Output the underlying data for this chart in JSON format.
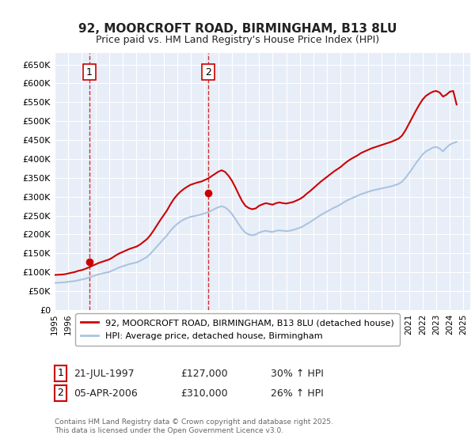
{
  "title_line1": "92, MOORCROFT ROAD, BIRMINGHAM, B13 8LU",
  "title_line2": "Price paid vs. HM Land Registry's House Price Index (HPI)",
  "ylabel_ticks": [
    "£0",
    "£50K",
    "£100K",
    "£150K",
    "£200K",
    "£250K",
    "£300K",
    "£350K",
    "£400K",
    "£450K",
    "£500K",
    "£550K",
    "£600K",
    "£650K"
  ],
  "ytick_values": [
    0,
    50000,
    100000,
    150000,
    200000,
    250000,
    300000,
    350000,
    400000,
    450000,
    500000,
    550000,
    600000,
    650000
  ],
  "xmin_year": 1995,
  "xmax_year": 2025,
  "xtick_years": [
    1995,
    1996,
    1997,
    1998,
    1999,
    2000,
    2001,
    2002,
    2003,
    2004,
    2005,
    2006,
    2007,
    2008,
    2009,
    2010,
    2011,
    2012,
    2013,
    2014,
    2015,
    2016,
    2017,
    2018,
    2019,
    2020,
    2021,
    2022,
    2023,
    2024,
    2025
  ],
  "bg_color": "#e8eef8",
  "grid_color": "#ffffff",
  "red_line_color": "#cc0000",
  "blue_line_color": "#aac4e0",
  "marker_color": "#cc0000",
  "annotation_box_color": "#cc0000",
  "sale1": {
    "year": 1997.55,
    "price": 127000,
    "label": "1",
    "date": "21-JUL-1997",
    "hpi_pct": "30%"
  },
  "sale2": {
    "year": 2006.27,
    "price": 310000,
    "label": "2",
    "date": "05-APR-2006",
    "hpi_pct": "26%"
  },
  "legend_label_red": "92, MOORCROFT ROAD, BIRMINGHAM, B13 8LU (detached house)",
  "legend_label_blue": "HPI: Average price, detached house, Birmingham",
  "footer_text": "Contains HM Land Registry data © Crown copyright and database right 2025.\nThis data is licensed under the Open Government Licence v3.0.",
  "hpi_data": {
    "years": [
      1995.0,
      1995.25,
      1995.5,
      1995.75,
      1996.0,
      1996.25,
      1996.5,
      1996.75,
      1997.0,
      1997.25,
      1997.5,
      1997.75,
      1998.0,
      1998.25,
      1998.5,
      1998.75,
      1999.0,
      1999.25,
      1999.5,
      1999.75,
      2000.0,
      2000.25,
      2000.5,
      2000.75,
      2001.0,
      2001.25,
      2001.5,
      2001.75,
      2002.0,
      2002.25,
      2002.5,
      2002.75,
      2003.0,
      2003.25,
      2003.5,
      2003.75,
      2004.0,
      2004.25,
      2004.5,
      2004.75,
      2005.0,
      2005.25,
      2005.5,
      2005.75,
      2006.0,
      2006.25,
      2006.5,
      2006.75,
      2007.0,
      2007.25,
      2007.5,
      2007.75,
      2008.0,
      2008.25,
      2008.5,
      2008.75,
      2009.0,
      2009.25,
      2009.5,
      2009.75,
      2010.0,
      2010.25,
      2010.5,
      2010.75,
      2011.0,
      2011.25,
      2011.5,
      2011.75,
      2012.0,
      2012.25,
      2012.5,
      2012.75,
      2013.0,
      2013.25,
      2013.5,
      2013.75,
      2014.0,
      2014.25,
      2014.5,
      2014.75,
      2015.0,
      2015.25,
      2015.5,
      2015.75,
      2016.0,
      2016.25,
      2016.5,
      2016.75,
      2017.0,
      2017.25,
      2017.5,
      2017.75,
      2018.0,
      2018.25,
      2018.5,
      2018.75,
      2019.0,
      2019.25,
      2019.5,
      2019.75,
      2020.0,
      2020.25,
      2020.5,
      2020.75,
      2021.0,
      2021.25,
      2021.5,
      2021.75,
      2022.0,
      2022.25,
      2022.5,
      2022.75,
      2023.0,
      2023.25,
      2023.5,
      2023.75,
      2024.0,
      2024.25,
      2024.5
    ],
    "values": [
      72000,
      72500,
      73000,
      73500,
      75000,
      76000,
      77000,
      79000,
      81000,
      83000,
      86000,
      89000,
      92000,
      95000,
      97000,
      99000,
      101000,
      105000,
      109000,
      113000,
      116000,
      119000,
      122000,
      124000,
      126000,
      130000,
      135000,
      140000,
      148000,
      158000,
      168000,
      178000,
      188000,
      198000,
      210000,
      220000,
      228000,
      235000,
      240000,
      244000,
      247000,
      249000,
      251000,
      253000,
      256000,
      259000,
      263000,
      268000,
      272000,
      275000,
      272000,
      265000,
      255000,
      242000,
      228000,
      215000,
      205000,
      200000,
      198000,
      200000,
      205000,
      208000,
      210000,
      208000,
      207000,
      210000,
      211000,
      210000,
      209000,
      210000,
      212000,
      215000,
      218000,
      222000,
      228000,
      233000,
      239000,
      245000,
      251000,
      256000,
      261000,
      266000,
      271000,
      275000,
      280000,
      286000,
      291000,
      295000,
      299000,
      303000,
      307000,
      310000,
      313000,
      316000,
      318000,
      320000,
      322000,
      324000,
      326000,
      328000,
      331000,
      334000,
      340000,
      350000,
      362000,
      375000,
      388000,
      400000,
      412000,
      420000,
      425000,
      430000,
      432000,
      428000,
      420000,
      430000,
      438000,
      442000,
      445000
    ]
  },
  "red_line_data": {
    "years": [
      1995.0,
      1995.25,
      1995.5,
      1995.75,
      1996.0,
      1996.25,
      1996.5,
      1996.75,
      1997.0,
      1997.25,
      1997.5,
      1997.75,
      1998.0,
      1998.25,
      1998.5,
      1998.75,
      1999.0,
      1999.25,
      1999.5,
      1999.75,
      2000.0,
      2000.25,
      2000.5,
      2000.75,
      2001.0,
      2001.25,
      2001.5,
      2001.75,
      2002.0,
      2002.25,
      2002.5,
      2002.75,
      2003.0,
      2003.25,
      2003.5,
      2003.75,
      2004.0,
      2004.25,
      2004.5,
      2004.75,
      2005.0,
      2005.25,
      2005.5,
      2005.75,
      2006.0,
      2006.25,
      2006.5,
      2006.75,
      2007.0,
      2007.25,
      2007.5,
      2007.75,
      2008.0,
      2008.25,
      2008.5,
      2008.75,
      2009.0,
      2009.25,
      2009.5,
      2009.75,
      2010.0,
      2010.25,
      2010.5,
      2010.75,
      2011.0,
      2011.25,
      2011.5,
      2011.75,
      2012.0,
      2012.25,
      2012.5,
      2012.75,
      2013.0,
      2013.25,
      2013.5,
      2013.75,
      2014.0,
      2014.25,
      2014.5,
      2014.75,
      2015.0,
      2015.25,
      2015.5,
      2015.75,
      2016.0,
      2016.25,
      2016.5,
      2016.75,
      2017.0,
      2017.25,
      2017.5,
      2017.75,
      2018.0,
      2018.25,
      2018.5,
      2018.75,
      2019.0,
      2019.25,
      2019.5,
      2019.75,
      2020.0,
      2020.25,
      2020.5,
      2020.75,
      2021.0,
      2021.25,
      2021.5,
      2021.75,
      2022.0,
      2022.25,
      2022.5,
      2022.75,
      2023.0,
      2023.25,
      2023.5,
      2023.75,
      2024.0,
      2024.25,
      2024.5
    ],
    "values": [
      93000,
      93500,
      94000,
      95000,
      97000,
      99000,
      101000,
      104000,
      106000,
      109000,
      113000,
      117000,
      121000,
      125000,
      128000,
      131000,
      134000,
      139000,
      145000,
      150000,
      154000,
      158000,
      162000,
      165000,
      168000,
      173000,
      180000,
      187000,
      197000,
      210000,
      224000,
      238000,
      251000,
      264000,
      280000,
      294000,
      305000,
      314000,
      321000,
      327000,
      332000,
      335000,
      338000,
      340000,
      344000,
      348000,
      354000,
      360000,
      366000,
      370000,
      366000,
      356000,
      343000,
      326000,
      307000,
      289000,
      276000,
      270000,
      267000,
      269000,
      276000,
      280000,
      283000,
      281000,
      279000,
      283000,
      285000,
      283000,
      282000,
      284000,
      286000,
      290000,
      294000,
      300000,
      308000,
      315000,
      323000,
      331000,
      339000,
      346000,
      353000,
      360000,
      367000,
      373000,
      379000,
      387000,
      394000,
      400000,
      405000,
      410000,
      416000,
      420000,
      424000,
      428000,
      431000,
      434000,
      437000,
      440000,
      443000,
      446000,
      450000,
      454000,
      462000,
      476000,
      493000,
      510000,
      527000,
      543000,
      557000,
      567000,
      573000,
      578000,
      580000,
      576000,
      565000,
      570000,
      578000,
      580000,
      544000
    ]
  }
}
